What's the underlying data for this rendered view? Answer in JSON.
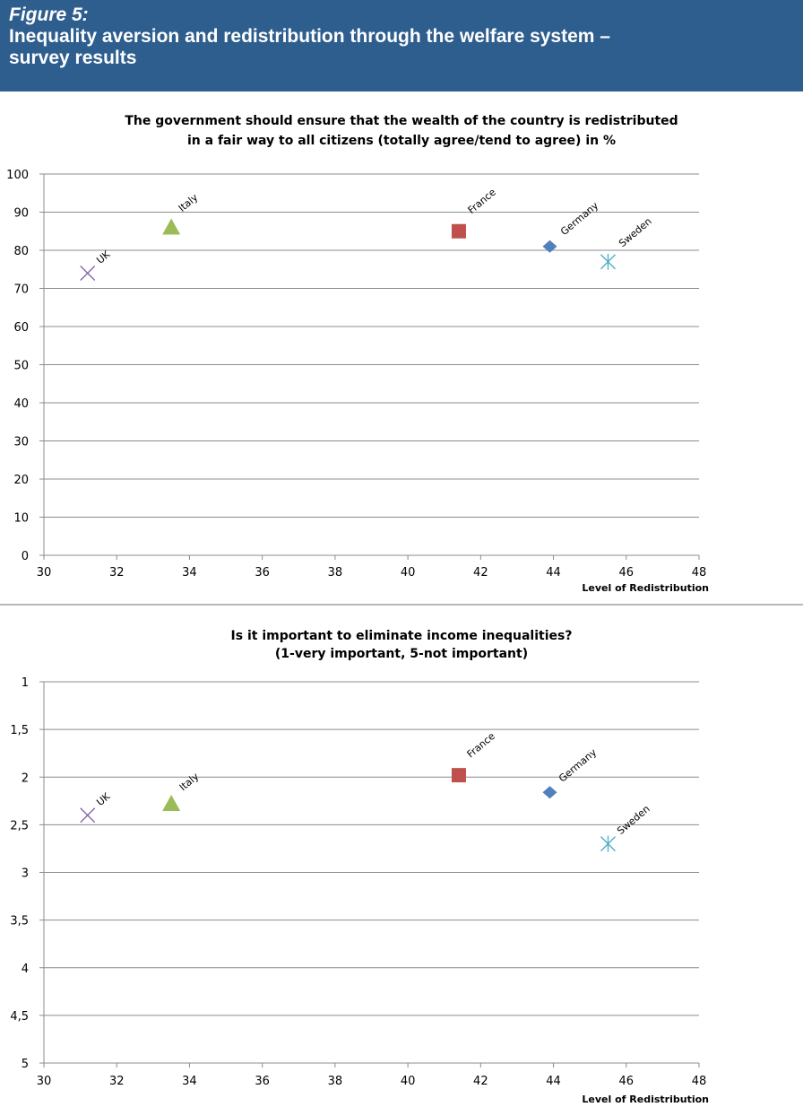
{
  "figure": {
    "label": "Figure 5:",
    "title_line1": "Inequality aversion and redistribution through the welfare system –",
    "title_line2": "survey results"
  },
  "colors": {
    "banner": "#2e5e8e",
    "France": "#c0504d",
    "Germany": "#4f81bd",
    "Italy": "#9bbb59",
    "UK": "#8064a2",
    "Sweden": "#4bacc6"
  },
  "chart_data": [
    {
      "type": "scatter",
      "title_lines": [
        "The government should ensure that the wealth of the country is redistributed",
        "in a fair way to all citizens (totally agree/tend to agree) in %"
      ],
      "xlabel": "Level of Redistribution",
      "ylabel": "",
      "xlim": [
        30,
        48
      ],
      "ylim": [
        0,
        100
      ],
      "y_reversed": false,
      "xticks": [
        "30",
        "32",
        "34",
        "36",
        "38",
        "40",
        "42",
        "44",
        "46",
        "48"
      ],
      "yticks": [
        "0",
        "10",
        "20",
        "30",
        "40",
        "50",
        "60",
        "70",
        "80",
        "90",
        "100"
      ],
      "grid": "horizontal",
      "points": [
        {
          "label": "UK",
          "x": 31.2,
          "y": 74,
          "marker": "x"
        },
        {
          "label": "Italy",
          "x": 33.5,
          "y": 86,
          "marker": "triangle"
        },
        {
          "label": "France",
          "x": 41.4,
          "y": 85,
          "marker": "square"
        },
        {
          "label": "Germany",
          "x": 43.9,
          "y": 81,
          "marker": "diamond"
        },
        {
          "label": "Sweden",
          "x": 45.5,
          "y": 77,
          "marker": "asterisk"
        }
      ]
    },
    {
      "type": "scatter",
      "title_lines": [
        "Is it  important to eliminate income inequalities?",
        "(1-very important, 5-not important)"
      ],
      "xlabel": "Level of Redistribution",
      "ylabel": "",
      "xlim": [
        30,
        48
      ],
      "ylim": [
        1,
        5
      ],
      "y_reversed": true,
      "xticks": [
        "30",
        "32",
        "34",
        "36",
        "38",
        "40",
        "42",
        "44",
        "46",
        "48"
      ],
      "yticks": [
        "1",
        "1,5",
        "2",
        "2,5",
        "3",
        "3,5",
        "4",
        "4,5",
        "5"
      ],
      "grid": "horizontal",
      "points": [
        {
          "label": "UK",
          "x": 31.2,
          "y": 2.4,
          "marker": "x"
        },
        {
          "label": "Italy",
          "x": 33.5,
          "y": 2.28,
          "marker": "triangle"
        },
        {
          "label": "France",
          "x": 41.4,
          "y": 1.98,
          "marker": "square"
        },
        {
          "label": "Germany",
          "x": 43.9,
          "y": 2.16,
          "marker": "diamond"
        },
        {
          "label": "Sweden",
          "x": 45.5,
          "y": 2.7,
          "marker": "asterisk"
        }
      ]
    }
  ]
}
